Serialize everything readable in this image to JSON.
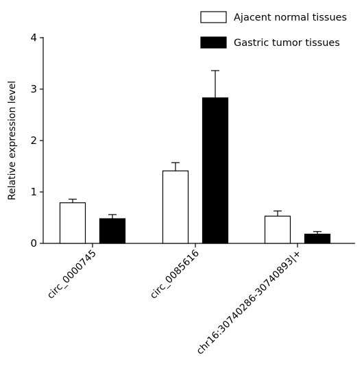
{
  "chart_data": {
    "type": "bar",
    "title": "",
    "xlabel": "",
    "ylabel": "Relative expression level",
    "ylim": [
      0,
      4
    ],
    "yticks": [
      "0",
      "1",
      "2",
      "3",
      "4"
    ],
    "categories": [
      "circ_0000745",
      "circ_0085616",
      "chr16:30740286-30740893|+"
    ],
    "series": [
      {
        "name": "Ajacent normal tissues",
        "fill": "#ffffff",
        "values": [
          0.79,
          1.41,
          0.53
        ],
        "errors": [
          0.07,
          0.16,
          0.1
        ]
      },
      {
        "name": "Gastric tumor tissues",
        "fill": "#000000",
        "values": [
          0.48,
          2.83,
          0.18
        ],
        "errors": [
          0.08,
          0.53,
          0.05
        ]
      }
    ],
    "error_bars": "upper",
    "grid": false,
    "legend_position": "top-right"
  }
}
